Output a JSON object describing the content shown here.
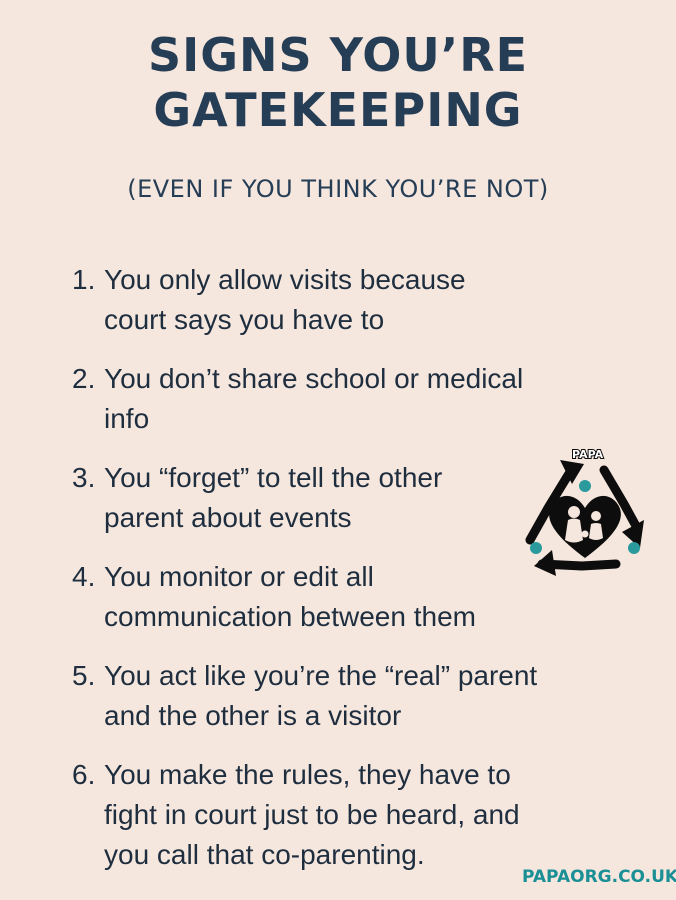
{
  "title": {
    "line1": "SIGNS YOU’RE",
    "line2": "GATEKEEPING"
  },
  "subtitle": "(EVEN IF YOU THINK YOU’RE NOT)",
  "items": [
    {
      "number": "1.",
      "lines": [
        "You only allow visits because",
        "court says you have to"
      ]
    },
    {
      "number": "2.",
      "lines": [
        "You don’t share school or medical",
        "info"
      ]
    },
    {
      "number": "3.",
      "lines": [
        "You “forget” to tell the other",
        "parent about events"
      ]
    },
    {
      "number": "4.",
      "lines": [
        "You monitor or edit all",
        "communication between them"
      ]
    },
    {
      "number": "5.",
      "lines": [
        "You act like you’re the “real” parent",
        "and the other is a visitor"
      ]
    },
    {
      "number": "6.",
      "lines": [
        "You make the rules, they have to",
        "fight in court just to be heard, and",
        "you call that co-parenting."
      ]
    }
  ],
  "logo": {
    "text": "PAPA",
    "icon": "recycle-heart-family-logo",
    "color_dark": "#0d0d0d",
    "color_accent": "#2a9a9c"
  },
  "footer": "PAPAORG.CO.UK",
  "colors": {
    "background": "#f5e7de",
    "title": "#253d55",
    "body_text": "#1f2e3f",
    "footer": "#1a8f95"
  }
}
